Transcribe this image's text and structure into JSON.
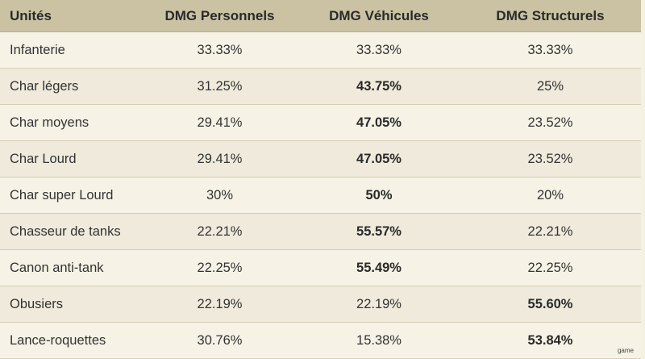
{
  "table": {
    "headers": [
      "Unités",
      "DMG Personnels",
      "DMG Véhicules",
      "DMG Structurels"
    ],
    "rows": [
      {
        "unit": "Infanterie",
        "personnels": "33.33%",
        "vehicules": "33.33%",
        "structurels": "33.33%",
        "bold": []
      },
      {
        "unit": "Char légers",
        "personnels": "31.25%",
        "vehicules": "43.75%",
        "structurels": "25%",
        "bold": [
          "vehicules"
        ]
      },
      {
        "unit": "Char moyens",
        "personnels": "29.41%",
        "vehicules": "47.05%",
        "structurels": "23.52%",
        "bold": [
          "vehicules"
        ]
      },
      {
        "unit": "Char Lourd",
        "personnels": "29.41%",
        "vehicules": "47.05%",
        "structurels": "23.52%",
        "bold": [
          "vehicules"
        ]
      },
      {
        "unit": "Char super Lourd",
        "personnels": "30%",
        "vehicules": "50%",
        "structurels": "20%",
        "bold": [
          "vehicules"
        ]
      },
      {
        "unit": "Chasseur de tanks",
        "personnels": "22.21%",
        "vehicules": "55.57%",
        "structurels": "22.21%",
        "bold": [
          "vehicules"
        ]
      },
      {
        "unit": "Canon anti-tank",
        "personnels": "22.25%",
        "vehicules": "55.49%",
        "structurels": "22.25%",
        "bold": [
          "vehicules"
        ]
      },
      {
        "unit": "Obusiers",
        "personnels": "22.19%",
        "vehicules": "22.19%",
        "structurels": "55.60%",
        "bold": [
          "structurels"
        ]
      },
      {
        "unit": "Lance-roquettes",
        "personnels": "30.76%",
        "vehicules": "15.38%",
        "structurels": "53.84%",
        "bold": [
          "structurels"
        ]
      }
    ]
  },
  "watermark": "game",
  "colors": {
    "header_bg": "#cbc2a3",
    "row_bg": "#f4f0e2"
  }
}
